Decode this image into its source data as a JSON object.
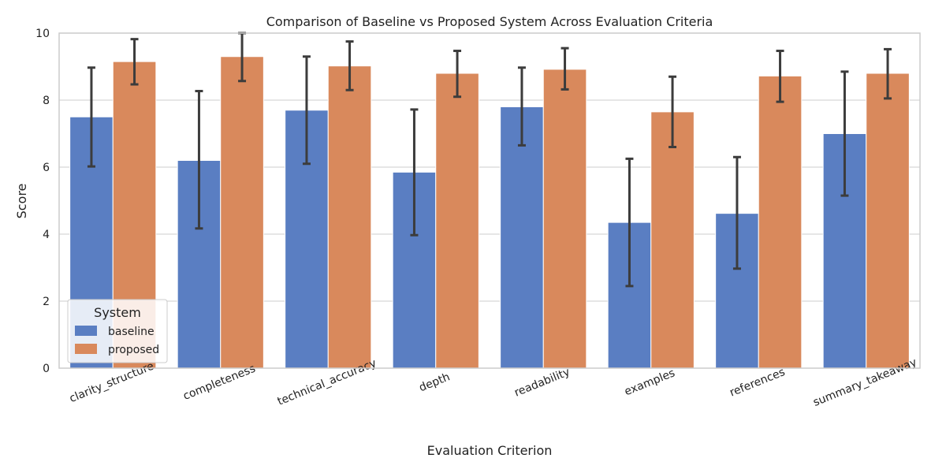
{
  "chart_data": {
    "type": "bar",
    "title": "Comparison of Baseline vs Proposed System Across Evaluation Criteria",
    "xlabel": "Evaluation Criterion",
    "ylabel": "Score",
    "ylim": [
      0,
      10
    ],
    "yticks": [
      0,
      2,
      4,
      6,
      8,
      10
    ],
    "grid": true,
    "legend": {
      "title": "System",
      "placement": "lower-left"
    },
    "categories": [
      "clarity_structure",
      "completeness",
      "technical_accuracy",
      "depth",
      "readability",
      "examples",
      "references",
      "summary_takeaway"
    ],
    "series": [
      {
        "name": "baseline",
        "color": "#5a7ec2",
        "values": [
          7.5,
          6.2,
          7.7,
          5.85,
          7.8,
          4.35,
          4.62,
          7.0
        ],
        "err_low": [
          6.02,
          4.17,
          6.1,
          3.97,
          6.65,
          2.45,
          2.97,
          5.15
        ],
        "err_high": [
          8.97,
          8.27,
          9.3,
          7.72,
          8.97,
          6.25,
          6.3,
          8.85
        ]
      },
      {
        "name": "proposed",
        "color": "#d9895c",
        "values": [
          9.15,
          9.3,
          9.02,
          8.8,
          8.92,
          7.65,
          8.72,
          8.8
        ],
        "err_low": [
          8.47,
          8.57,
          8.3,
          8.1,
          8.32,
          6.6,
          7.95,
          8.05
        ],
        "err_high": [
          9.82,
          10.0,
          9.75,
          9.47,
          9.55,
          8.7,
          9.47,
          9.52
        ]
      }
    ]
  }
}
